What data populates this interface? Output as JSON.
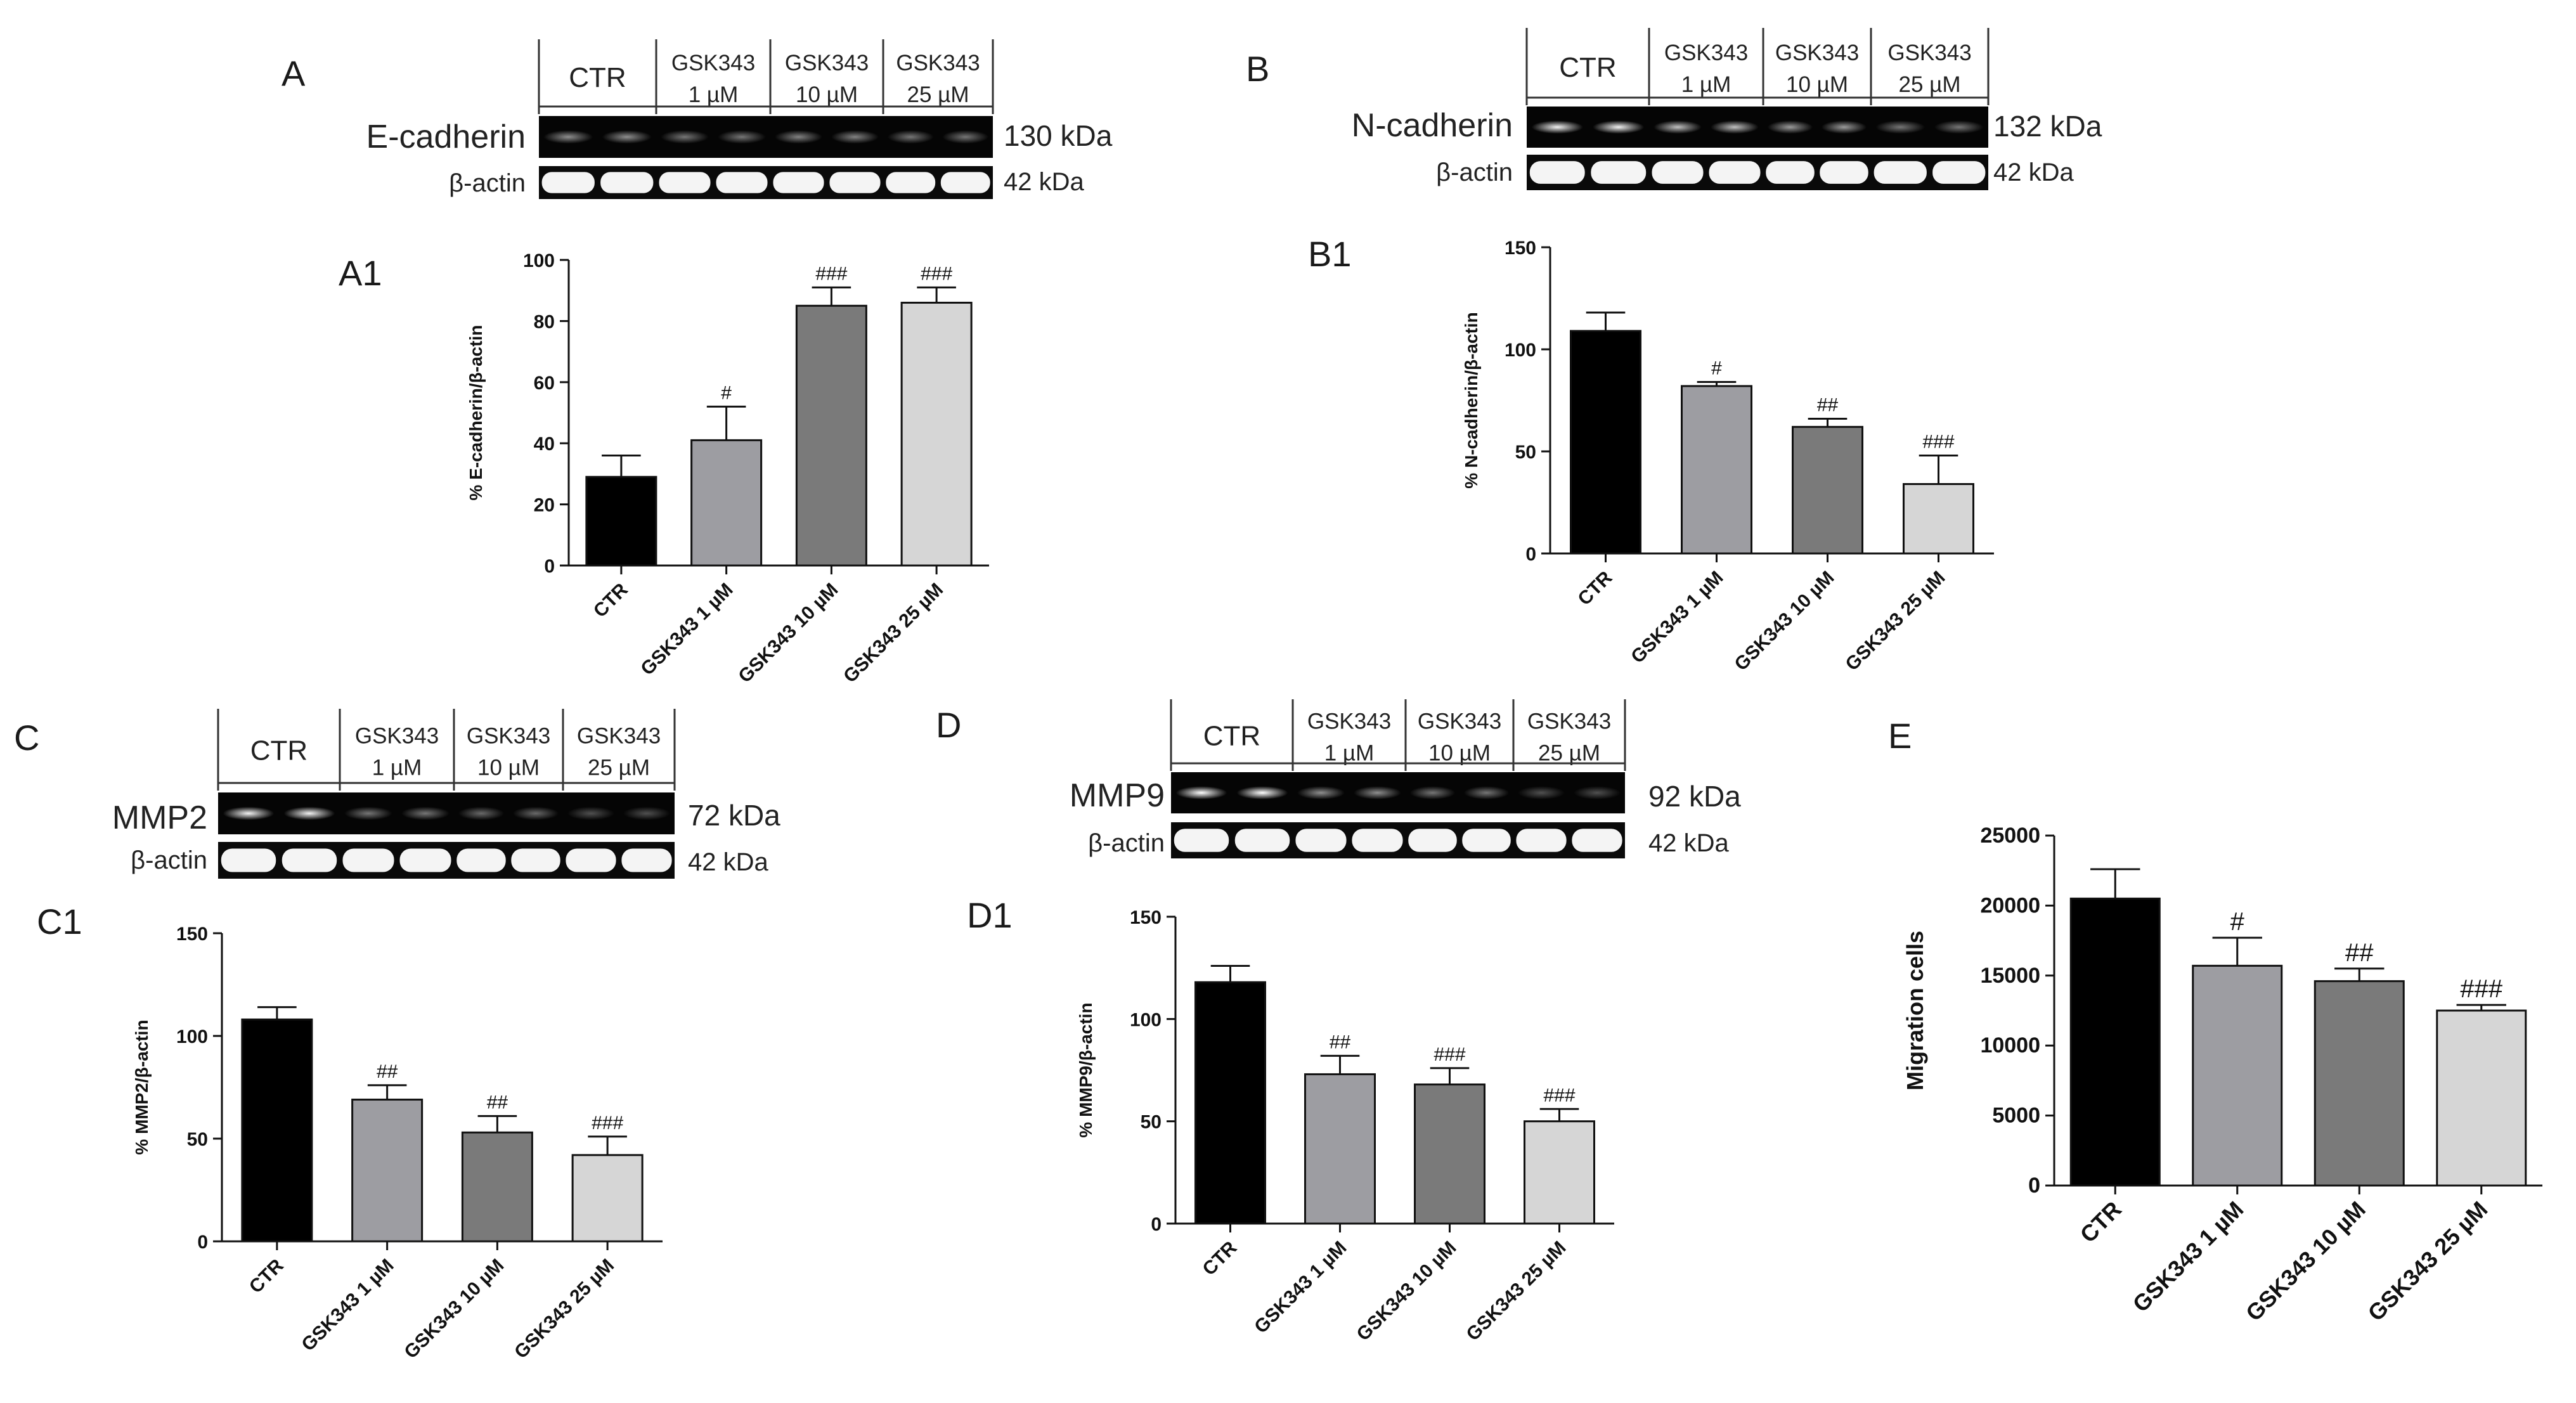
{
  "colors": {
    "CTR": "#000000",
    "GSK343 1 µM": "#9d9da2",
    "GSK343 10 µM": "#7a7a7a",
    "GSK343 25 µM": "#d6d6d6"
  },
  "blots": [
    {
      "id": "A",
      "letter": "A",
      "protein": "E-cadherin",
      "protein_kda": "130 kDa",
      "actin": "β-actin",
      "actin_kda": "42 kDa",
      "groups": [
        {
          "line1": "CTR",
          "line2": ""
        },
        {
          "line1": "GSK343",
          "line2": "1 µM"
        },
        {
          "line1": "GSK343",
          "line2": "10 µM"
        },
        {
          "line1": "GSK343",
          "line2": "25 µM"
        }
      ]
    },
    {
      "id": "B",
      "letter": "B",
      "protein": "N-cadherin",
      "protein_kda": "132 kDa",
      "actin": "β-actin",
      "actin_kda": "42 kDa",
      "groups": [
        {
          "line1": "CTR",
          "line2": ""
        },
        {
          "line1": "GSK343",
          "line2": "1 µM"
        },
        {
          "line1": "GSK343",
          "line2": "10 µM"
        },
        {
          "line1": "GSK343",
          "line2": "25 µM"
        }
      ]
    },
    {
      "id": "C",
      "letter": "C",
      "protein": "MMP2",
      "protein_kda": "72 kDa",
      "actin": "β-actin",
      "actin_kda": "42 kDa",
      "groups": [
        {
          "line1": "CTR",
          "line2": ""
        },
        {
          "line1": "GSK343",
          "line2": "1 µM"
        },
        {
          "line1": "GSK343",
          "line2": "10 µM"
        },
        {
          "line1": "GSK343",
          "line2": "25 µM"
        }
      ]
    },
    {
      "id": "D",
      "letter": "D",
      "protein": "MMP9",
      "protein_kda": "92 kDa",
      "actin": "β-actin",
      "actin_kda": "42 kDa",
      "groups": [
        {
          "line1": "CTR",
          "line2": ""
        },
        {
          "line1": "GSK343",
          "line2": "1 µM"
        },
        {
          "line1": "GSK343",
          "line2": "10 µM"
        },
        {
          "line1": "GSK343",
          "line2": "25 µM"
        }
      ]
    }
  ],
  "chart_data": [
    {
      "id": "A1",
      "panel_label": "A1",
      "type": "bar",
      "title": "",
      "categories": [
        "CTR",
        "GSK343 1 µM",
        "GSK343 10 µM",
        "GSK343 25 µM"
      ],
      "values": [
        29,
        41,
        85,
        86
      ],
      "errors": [
        7,
        11,
        6,
        5
      ],
      "significance": [
        "",
        "#",
        "###",
        "###"
      ],
      "xlabel": "",
      "ylabel": "% E-cadherin/β-actin",
      "ylim": [
        0,
        100
      ],
      "yticks": [
        0,
        20,
        40,
        60,
        80,
        100
      ],
      "ytick_labels": [
        "0",
        "20",
        "40",
        "60",
        "80",
        "100"
      ]
    },
    {
      "id": "B1",
      "panel_label": "B1",
      "type": "bar",
      "title": "",
      "categories": [
        "CTR",
        "GSK343 1 µM",
        "GSK343 10 µM",
        "GSK343 25 µM"
      ],
      "values": [
        109,
        82,
        62,
        34
      ],
      "errors": [
        9,
        2,
        4,
        14
      ],
      "significance": [
        "",
        "#",
        "##",
        "###"
      ],
      "xlabel": "",
      "ylabel": "% N-cadherin/β-actin",
      "ylim": [
        0,
        150
      ],
      "yticks": [
        0,
        50,
        100,
        150
      ],
      "ytick_labels": [
        "0",
        "50",
        "100",
        "150"
      ]
    },
    {
      "id": "C1",
      "panel_label": "C1",
      "type": "bar",
      "title": "",
      "categories": [
        "CTR",
        "GSK343 1 µM",
        "GSK343 10 µM",
        "GSK343 25 µM"
      ],
      "values": [
        108,
        69,
        53,
        42
      ],
      "errors": [
        6,
        7,
        8,
        9
      ],
      "significance": [
        "",
        "##",
        "##",
        "###"
      ],
      "xlabel": "",
      "ylabel": "% MMP2/β-actin",
      "ylim": [
        0,
        150
      ],
      "yticks": [
        0,
        50,
        100,
        150
      ],
      "ytick_labels": [
        "0",
        "50",
        "100",
        "150"
      ]
    },
    {
      "id": "D1",
      "panel_label": "D1",
      "type": "bar",
      "title": "",
      "categories": [
        "CTR",
        "GSK343 1 µM",
        "GSK343 10 µM",
        "GSK343 25 µM"
      ],
      "values": [
        118,
        73,
        68,
        50
      ],
      "errors": [
        8,
        9,
        8,
        6
      ],
      "significance": [
        "",
        "##",
        "###",
        "###"
      ],
      "xlabel": "",
      "ylabel": "% MMP9/β-actin",
      "ylim": [
        0,
        150
      ],
      "yticks": [
        0,
        50,
        100,
        150
      ],
      "ytick_labels": [
        "0",
        "50",
        "100",
        "150"
      ]
    },
    {
      "id": "E",
      "panel_label": "E",
      "type": "bar",
      "title": "",
      "categories": [
        "CTR",
        "GSK343 1 µM",
        "GSK343 10 µM",
        "GSK343 25 µM"
      ],
      "values": [
        20500,
        15700,
        14600,
        12500
      ],
      "errors": [
        2100,
        2000,
        900,
        400
      ],
      "significance": [
        "",
        "#",
        "##",
        "###"
      ],
      "xlabel": "",
      "ylabel": "Migration cells",
      "ylim": [
        0,
        25000
      ],
      "yticks": [
        0,
        5000,
        10000,
        15000,
        20000,
        25000
      ],
      "ytick_labels": [
        "0",
        "5000",
        "10000",
        "15000",
        "20000",
        "25000"
      ]
    }
  ]
}
